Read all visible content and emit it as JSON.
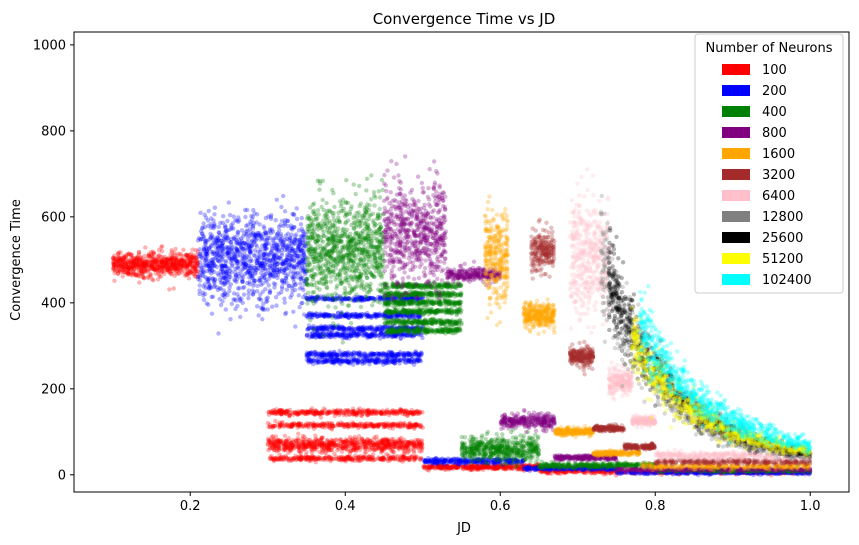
{
  "chart_data": {
    "type": "scatter",
    "title": "Convergence Time vs JD",
    "xlabel": "JD",
    "ylabel": "Convergence Time",
    "xlim": [
      0.05,
      1.05
    ],
    "ylim": [
      -40,
      1030
    ],
    "xticks": [
      "0.2",
      "0.4",
      "0.6",
      "0.8",
      "1.0"
    ],
    "yticks": [
      "0",
      "200",
      "400",
      "600",
      "800",
      "1000"
    ],
    "grid": false,
    "legend": {
      "title": "Number of Neurons",
      "placement": "top-right",
      "entries": [
        {
          "label": "100",
          "color": "#ff0000"
        },
        {
          "label": "200",
          "color": "#0000ff"
        },
        {
          "label": "400",
          "color": "#008000"
        },
        {
          "label": "800",
          "color": "#800080"
        },
        {
          "label": "1600",
          "color": "#ffa500"
        },
        {
          "label": "3200",
          "color": "#a52a2a"
        },
        {
          "label": "6400",
          "color": "#ffc0cb"
        },
        {
          "label": "12800",
          "color": "#808080"
        },
        {
          "label": "25600",
          "color": "#000000"
        },
        {
          "label": "51200",
          "color": "#ffff00"
        },
        {
          "label": "102400",
          "color": "#00ffff"
        }
      ]
    },
    "series": [
      {
        "name": "100",
        "color": "#ff0000",
        "clusters": [
          {
            "x": [
              0.1,
              0.21
            ],
            "y": [
              490,
              14
            ],
            "n": 700
          },
          {
            "x": [
              0.3,
              0.5
            ],
            "y": [
              145,
              3
            ],
            "n": 350
          },
          {
            "x": [
              0.3,
              0.5
            ],
            "y": [
              115,
              3
            ],
            "n": 300
          },
          {
            "x": [
              0.3,
              0.5
            ],
            "y": [
              70,
              8
            ],
            "n": 700
          },
          {
            "x": [
              0.3,
              0.5
            ],
            "y": [
              38,
              3
            ],
            "n": 300
          },
          {
            "x": [
              0.5,
              0.65
            ],
            "y": [
              18,
              3
            ],
            "n": 400
          },
          {
            "x": [
              0.65,
              1.0
            ],
            "y": [
              8,
              3
            ],
            "n": 600
          }
        ]
      },
      {
        "name": "200",
        "color": "#0000ff",
        "clusters": [
          {
            "x": [
              0.21,
              0.35
            ],
            "y": [
              500,
              50
            ],
            "n": 1100
          },
          {
            "x": [
              0.35,
              0.5
            ],
            "y": [
              410,
              3
            ],
            "n": 250
          },
          {
            "x": [
              0.35,
              0.5
            ],
            "y": [
              370,
              3
            ],
            "n": 250
          },
          {
            "x": [
              0.35,
              0.5
            ],
            "y": [
              340,
              3
            ],
            "n": 250
          },
          {
            "x": [
              0.35,
              0.5
            ],
            "y": [
              325,
              3
            ],
            "n": 250
          },
          {
            "x": [
              0.35,
              0.5
            ],
            "y": [
              280,
              3
            ],
            "n": 250
          },
          {
            "x": [
              0.35,
              0.5
            ],
            "y": [
              265,
              3
            ],
            "n": 250
          },
          {
            "x": [
              0.5,
              0.63
            ],
            "y": [
              32,
              3
            ],
            "n": 300
          },
          {
            "x": [
              0.63,
              0.75
            ],
            "y": [
              15,
              2
            ],
            "n": 250
          },
          {
            "x": [
              0.75,
              1.0
            ],
            "y": [
              5,
              2
            ],
            "n": 350
          }
        ]
      },
      {
        "name": "400",
        "color": "#008000",
        "clusters": [
          {
            "x": [
              0.35,
              0.45
            ],
            "y": [
              520,
              60
            ],
            "n": 900
          },
          {
            "x": [
              0.45,
              0.55
            ],
            "y": [
              440,
              3
            ],
            "n": 200
          },
          {
            "x": [
              0.45,
              0.55
            ],
            "y": [
              420,
              3
            ],
            "n": 200
          },
          {
            "x": [
              0.45,
              0.55
            ],
            "y": [
              400,
              3
            ],
            "n": 200
          },
          {
            "x": [
              0.45,
              0.55
            ],
            "y": [
              380,
              3
            ],
            "n": 200
          },
          {
            "x": [
              0.45,
              0.55
            ],
            "y": [
              355,
              3
            ],
            "n": 200
          },
          {
            "x": [
              0.45,
              0.55
            ],
            "y": [
              335,
              3
            ],
            "n": 200
          },
          {
            "x": [
              0.55,
              0.65
            ],
            "y": [
              60,
              14
            ],
            "n": 500
          },
          {
            "x": [
              0.65,
              0.8
            ],
            "y": [
              22,
              3
            ],
            "n": 350
          },
          {
            "x": [
              0.8,
              1.0
            ],
            "y": [
              10,
              2
            ],
            "n": 300
          }
        ]
      },
      {
        "name": "800",
        "color": "#800080",
        "clusters": [
          {
            "x": [
              0.45,
              0.53
            ],
            "y": [
              560,
              60
            ],
            "n": 650
          },
          {
            "x": [
              0.53,
              0.6
            ],
            "y": [
              465,
              8
            ],
            "n": 250
          },
          {
            "x": [
              0.6,
              0.67
            ],
            "y": [
              125,
              8
            ],
            "n": 300
          },
          {
            "x": [
              0.67,
              0.75
            ],
            "y": [
              40,
              3
            ],
            "n": 250
          },
          {
            "x": [
              0.75,
              1.0
            ],
            "y": [
              12,
              2
            ],
            "n": 300
          }
        ]
      },
      {
        "name": "1600",
        "color": "#ffa500",
        "clusters": [
          {
            "x": [
              0.58,
              0.61
            ],
            "y": [
              510,
              55
            ],
            "n": 300
          },
          {
            "x": [
              0.63,
              0.67
            ],
            "y": [
              370,
              15
            ],
            "n": 300
          },
          {
            "x": [
              0.67,
              0.72
            ],
            "y": [
              100,
              4
            ],
            "n": 250
          },
          {
            "x": [
              0.72,
              0.78
            ],
            "y": [
              50,
              3
            ],
            "n": 200
          },
          {
            "x": [
              0.78,
              1.0
            ],
            "y": [
              20,
              3
            ],
            "n": 300
          }
        ]
      },
      {
        "name": "3200",
        "color": "#a52a2a",
        "clusters": [
          {
            "x": [
              0.64,
              0.67
            ],
            "y": [
              520,
              25
            ],
            "n": 220
          },
          {
            "x": [
              0.69,
              0.72
            ],
            "y": [
              275,
              12
            ],
            "n": 220
          },
          {
            "x": [
              0.72,
              0.76
            ],
            "y": [
              108,
              3
            ],
            "n": 200
          },
          {
            "x": [
              0.76,
              0.8
            ],
            "y": [
              65,
              3
            ],
            "n": 180
          },
          {
            "x": [
              0.8,
              1.0
            ],
            "y": [
              30,
              3
            ],
            "n": 300
          }
        ]
      },
      {
        "name": "6400",
        "color": "#ffc0cb",
        "clusters": [
          {
            "x": [
              0.69,
              0.74
            ],
            "y": [
              500,
              70
            ],
            "n": 400
          },
          {
            "x": [
              0.74,
              0.77
            ],
            "y": [
              215,
              15
            ],
            "n": 220
          },
          {
            "x": [
              0.77,
              0.8
            ],
            "y": [
              125,
              5
            ],
            "n": 180
          },
          {
            "x": [
              0.8,
              1.0
            ],
            "y": [
              45,
              5
            ],
            "n": 350
          }
        ]
      }
    ],
    "curves": [
      {
        "name": "12800",
        "color": "#808080",
        "x": [
          0.73,
          1.0
        ],
        "a": 23.8,
        "b": 3.85,
        "c": 20,
        "spread": 0.14,
        "n": 700
      },
      {
        "name": "25600",
        "color": "#000000",
        "x": [
          0.74,
          1.0
        ],
        "a": 29.7,
        "b": 3.6,
        "c": 22,
        "spread": 0.12,
        "n": 800
      },
      {
        "name": "51200",
        "color": "#ffff00",
        "x": [
          0.77,
          1.0
        ],
        "a": 30.4,
        "b": 3.45,
        "c": 25,
        "spread": 0.12,
        "n": 800
      },
      {
        "name": "102400",
        "color": "#00ffff",
        "x": [
          0.78,
          1.0
        ],
        "a": 39.5,
        "b": 3.4,
        "c": 30,
        "spread": 0.12,
        "n": 800
      }
    ]
  }
}
